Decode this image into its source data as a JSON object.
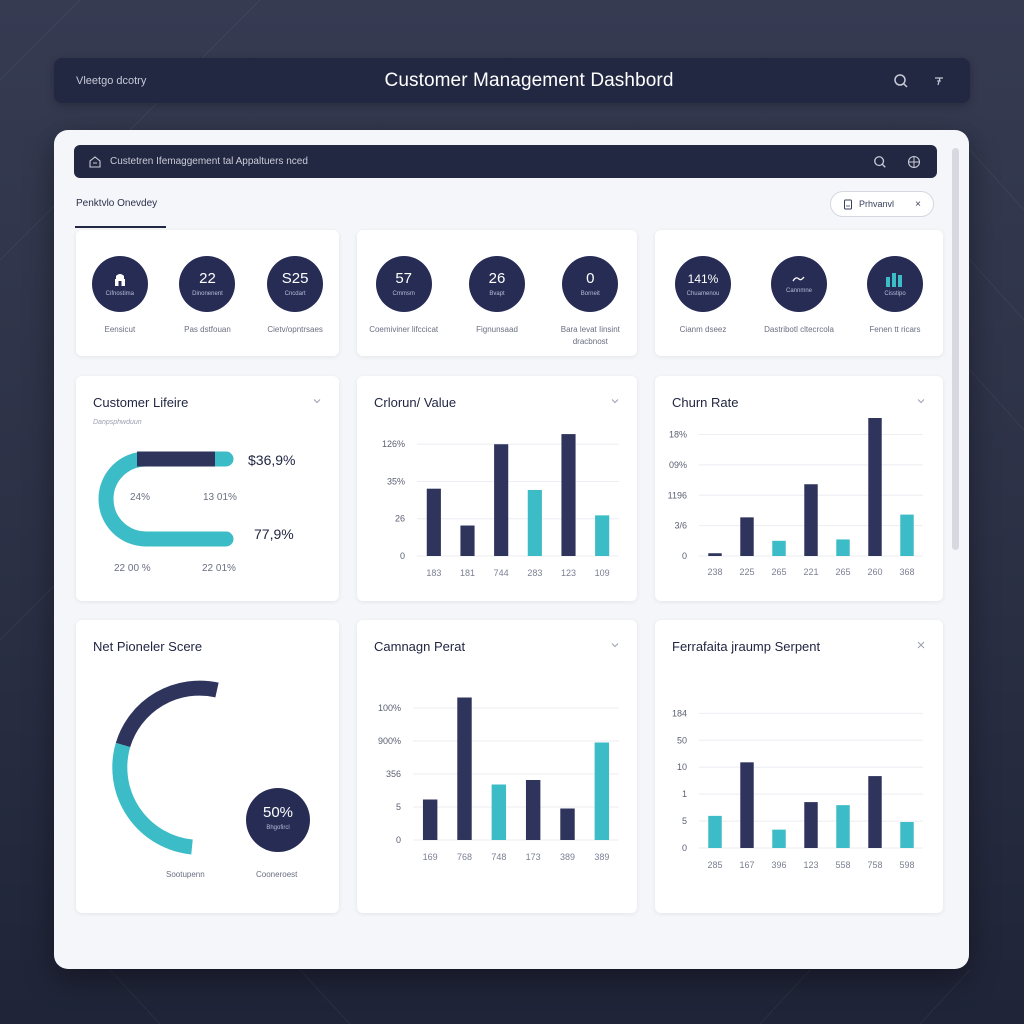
{
  "app": {
    "brand": "Vleetgo dcotry",
    "title": "Customer Management Dashbord"
  },
  "window": {
    "inner_bar_label": "Custetren Ifemaggement tal Appaltuers nced",
    "section_title": "Penktvlo Onevdey",
    "filter_chip": {
      "label": "Prhvanvl",
      "close": "×"
    }
  },
  "kpi_groups": [
    {
      "items": [
        {
          "value": "",
          "icon": "lock-icon",
          "sub": "Cifnostima",
          "label": "Eensicut"
        },
        {
          "value": "22",
          "sub": "Dinonenent",
          "label": "Pas dstfouan"
        },
        {
          "value": "S25",
          "sub": "Cncdart",
          "label": "Cietv/opntrsaes"
        }
      ]
    },
    {
      "items": [
        {
          "value": "57",
          "sub": "Cmmsm",
          "label": "Coemiviner lifccicat"
        },
        {
          "value": "26",
          "sub": "Bvapt",
          "label": "Fignunsaad"
        },
        {
          "value": "0",
          "sub": "Borneit",
          "label": "Bara levat Iinsint dracbnost"
        }
      ]
    },
    {
      "items": [
        {
          "value": "141%",
          "sub": "Chuamenou",
          "label": "Cianm dseez"
        },
        {
          "value": "",
          "icon": "wave-icon",
          "sub": "Cannmne",
          "label": "Dastribotl cltecrcola"
        },
        {
          "value": "",
          "icon": "bar-chart-icon",
          "sub": "Cisstipo",
          "label": "Fenen tt ricars"
        }
      ]
    }
  ],
  "lifetime_card": {
    "title": "Customer Lifeire",
    "subtitle": "Danpsphwduun",
    "top_value": "$36,9%",
    "bottom_value": "77,9%",
    "inner_left": "24%",
    "inner_right": "13 01%",
    "foot_left": "22 00 %",
    "foot_right": "22 01%"
  },
  "nps_card": {
    "title": "Net Pioneler Scere",
    "badge_value": "50%",
    "badge_sub": "Bhgofircl",
    "legend_left": "Sootupenn",
    "legend_right": "Cooneroest"
  },
  "colors": {
    "navy": "#2f345c",
    "teal": "#3bbcc6",
    "dark_bar": "#232842",
    "circle": "#262c54"
  },
  "chart_data": [
    {
      "type": "bar",
      "title": "Crlorun/ Value",
      "categories": [
        "183",
        "181",
        "744",
        "283",
        "123",
        "109"
      ],
      "y_ticks": [
        "0",
        "26",
        "35%",
        "126%"
      ],
      "values": [
        53,
        24,
        88,
        52,
        96,
        32
      ],
      "bar_colors": [
        "navy",
        "navy",
        "navy",
        "teal",
        "navy",
        "teal"
      ],
      "ylim": [
        0,
        100
      ]
    },
    {
      "type": "bar",
      "title": "Churn Rate",
      "categories": [
        "238",
        "225",
        "265",
        "221",
        "265",
        "260",
        "368"
      ],
      "y_ticks": [
        "0",
        "3/6",
        "1196",
        "09%",
        "18%"
      ],
      "values": [
        2,
        28,
        11,
        52,
        12,
        100,
        30
      ],
      "bar_colors": [
        "navy",
        "navy",
        "teal",
        "navy",
        "teal",
        "navy",
        "teal"
      ],
      "ylim": [
        0,
        100
      ]
    },
    {
      "type": "bar",
      "title": "Camnagn Perat",
      "categories": [
        "169",
        "768",
        "748",
        "173",
        "389",
        "389"
      ],
      "y_ticks": [
        "0",
        "5",
        "356",
        "900%",
        "100%"
      ],
      "values": [
        27,
        95,
        37,
        40,
        21,
        65
      ],
      "bar_colors": [
        "navy",
        "navy",
        "teal",
        "navy",
        "navy",
        "teal"
      ],
      "ylim": [
        0,
        100
      ]
    },
    {
      "type": "bar",
      "title": "Ferrafaita jraump Serpent",
      "categories": [
        "285",
        "167",
        "396",
        "123",
        "558",
        "758",
        "598"
      ],
      "y_ticks": [
        "0",
        "5",
        "1",
        "10",
        "50",
        "184"
      ],
      "values": [
        21,
        56,
        12,
        30,
        28,
        47,
        17
      ],
      "bar_colors": [
        "teal",
        "navy",
        "teal",
        "navy",
        "teal",
        "navy",
        "teal"
      ],
      "ylim": [
        0,
        100
      ]
    }
  ]
}
